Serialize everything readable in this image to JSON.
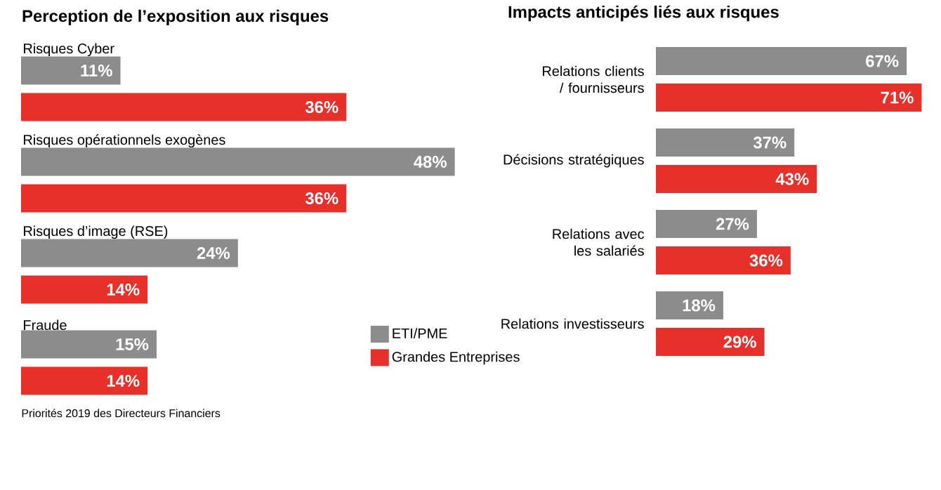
{
  "chart_data": [
    {
      "type": "bar",
      "orientation": "horizontal",
      "title": "Perception de l’exposition aux risques",
      "categories": [
        "Risques Cyber",
        "Risques opérationnels exogènes",
        "Risques d’image (RSE)",
        "Fraude"
      ],
      "series": [
        {
          "name": "ETI/PME",
          "color": "#8c8c8c",
          "values": [
            11,
            48,
            24,
            15
          ],
          "value_labels": [
            "11%",
            "48%",
            "24%",
            "15%"
          ]
        },
        {
          "name": "Grandes Entreprises",
          "color": "#e8302a",
          "values": [
            36,
            36,
            14,
            14
          ],
          "value_labels": [
            "36%",
            "36%",
            "14%",
            "14%"
          ]
        }
      ],
      "legend": "bottom right",
      "annotations": [
        "Priorités 2019 des Directeurs Financiers"
      ]
    },
    {
      "type": "bar",
      "orientation": "horizontal",
      "title": "Impacts anticipés liés aux risques",
      "categories": [
        "Relations clients / fournisseurs",
        "Décisions stratégiques",
        "Relations avec les salariés",
        "Relations investisseurs"
      ],
      "series": [
        {
          "color": "#8c8c8c",
          "values": [
            67,
            37,
            27,
            18
          ],
          "value_labels": [
            "67%",
            "37%",
            "27%",
            "18%"
          ]
        },
        {
          "color": "#e8302a",
          "values": [
            71,
            43,
            36,
            29
          ],
          "value_labels": [
            "71%",
            "43%",
            "36%",
            "29%"
          ]
        }
      ],
      "legend": false
    }
  ]
}
